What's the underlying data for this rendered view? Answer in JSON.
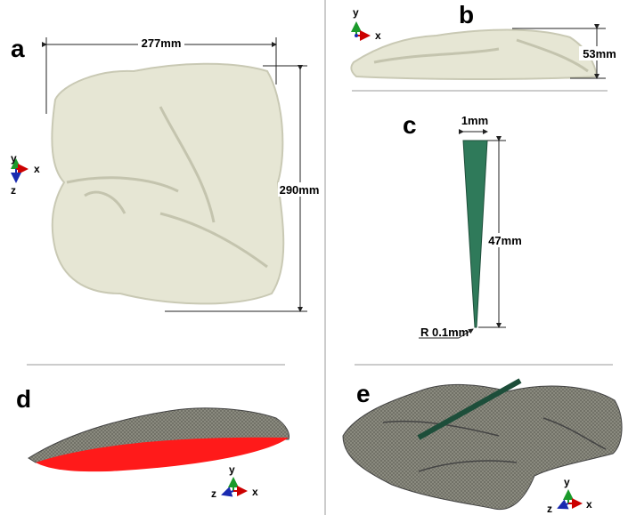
{
  "panels": [
    {
      "label": "a",
      "dimensions": [
        "277mm",
        "290mm"
      ],
      "axes": [
        "y",
        "x",
        "z"
      ]
    },
    {
      "label": "b",
      "dimensions": [
        "53mm"
      ],
      "axes": [
        "y",
        "x"
      ]
    },
    {
      "label": "c",
      "dimensions": [
        "1mm",
        "47mm",
        "R 0.1mm"
      ]
    },
    {
      "label": "d",
      "axes": [
        "y",
        "z",
        "x"
      ]
    },
    {
      "label": "e",
      "axes": [
        "y",
        "z",
        "x"
      ]
    }
  ]
}
